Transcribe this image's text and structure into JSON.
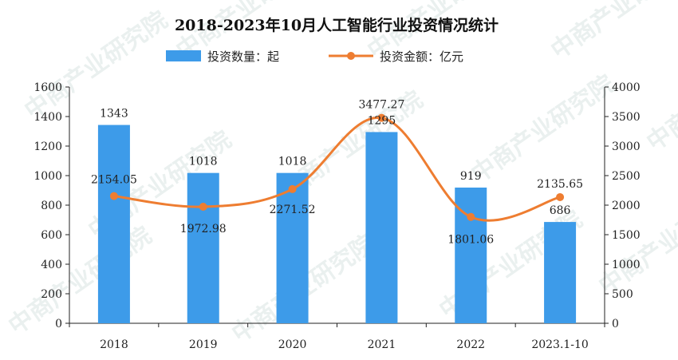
{
  "chart_data": {
    "type": "bar",
    "title": "2018-2023年10月人工智能行业投资情况统计",
    "categories": [
      "2018",
      "2019",
      "2020",
      "2021",
      "2022",
      "2023.1-10"
    ],
    "series": [
      {
        "name": "投资数量：起",
        "type": "bar",
        "axis": "left",
        "values": [
          1343,
          1018,
          1018,
          1295,
          919,
          686
        ],
        "labels": [
          "1343",
          "1018",
          "1018",
          "1295",
          "919",
          "686"
        ]
      },
      {
        "name": "投资金额：亿元",
        "type": "line",
        "axis": "right",
        "values": [
          2154.05,
          1972.98,
          2271.52,
          3477.27,
          1801.06,
          2135.65
        ],
        "labels": [
          "2154.05",
          "1972.98",
          "2271.52",
          "3477.27",
          "1801.06",
          "2135.65"
        ]
      }
    ],
    "y_left": {
      "ylim": [
        0,
        1600
      ],
      "ticks": [
        "0",
        "200",
        "400",
        "600",
        "800",
        "1000",
        "1200",
        "1400",
        "1600"
      ]
    },
    "y_right": {
      "ylim": [
        0,
        4000
      ],
      "ticks": [
        "0",
        "500",
        "1000",
        "1500",
        "2000",
        "2500",
        "3000",
        "3500",
        "4000"
      ]
    },
    "legend_position": "top-center",
    "grid": false,
    "colors": {
      "bar": "#3d9be9",
      "line": "#ee7d31"
    }
  },
  "watermark": "中商产业研究院"
}
